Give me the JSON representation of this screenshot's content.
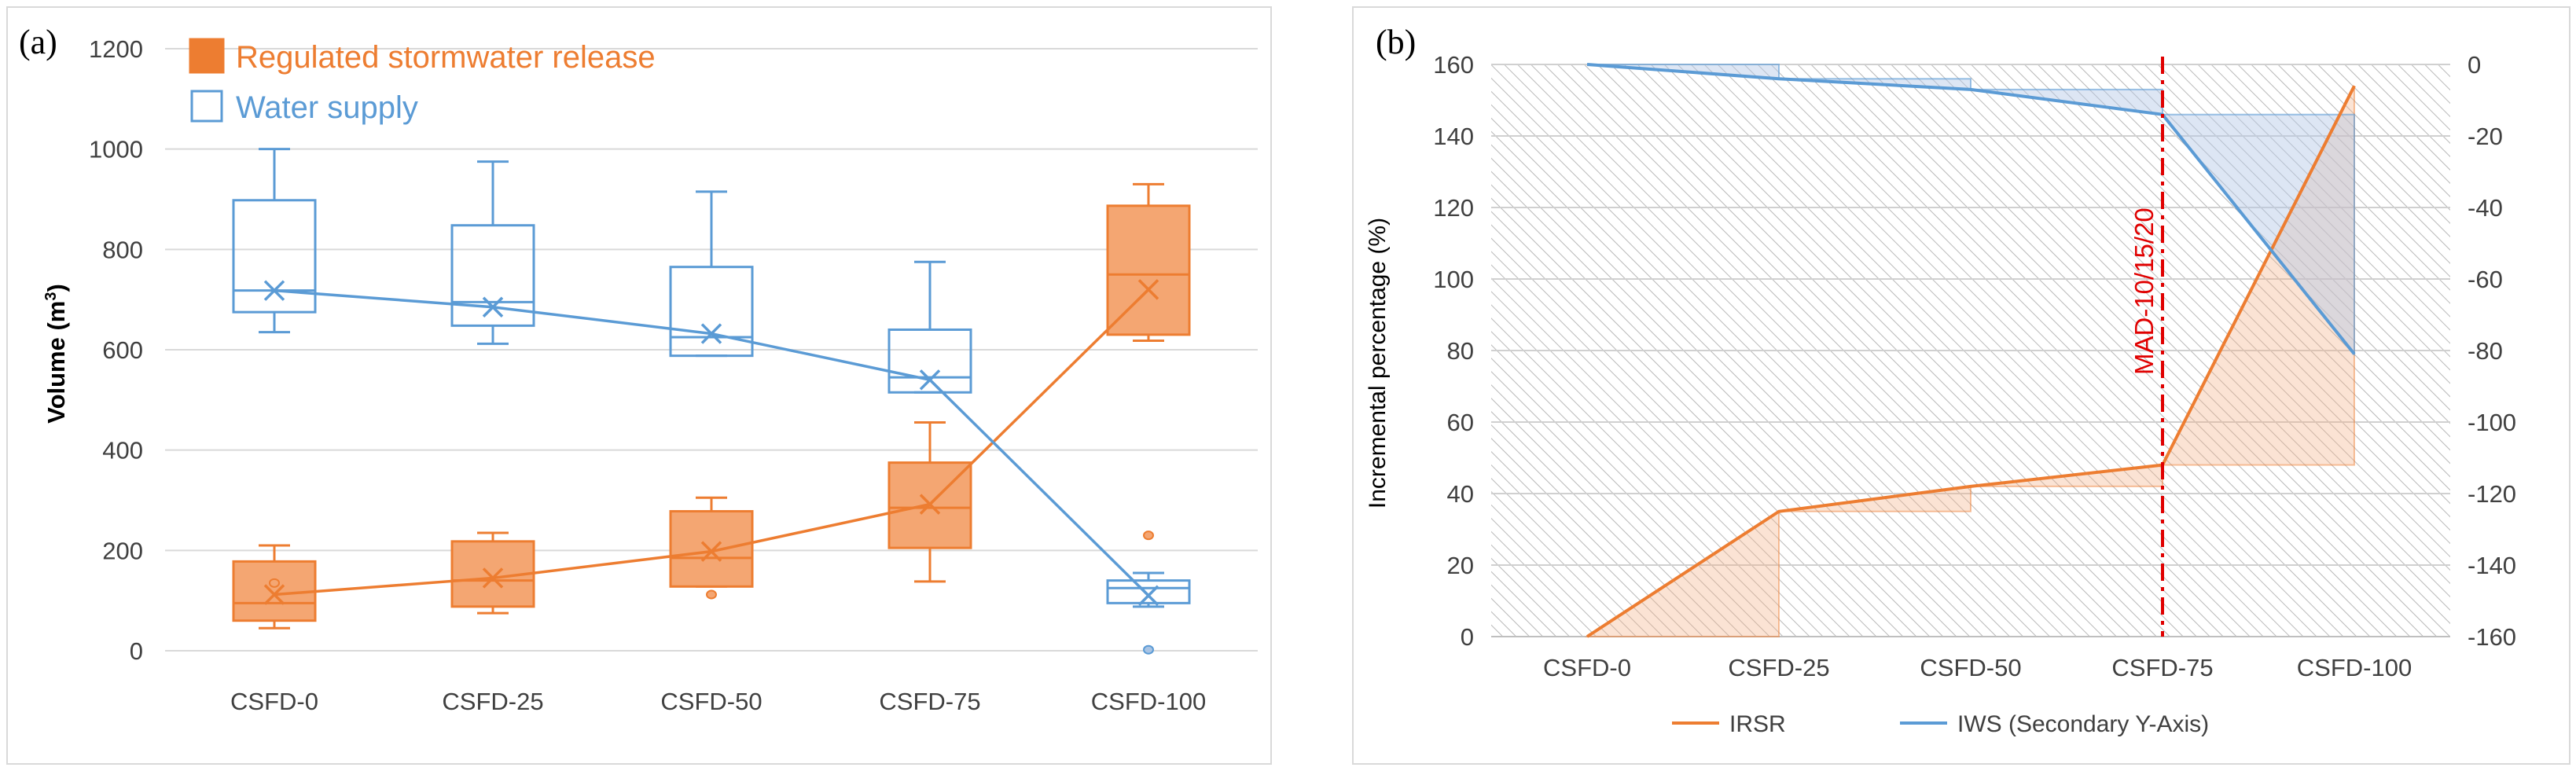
{
  "chart_data": [
    {
      "panel_label": "(a)",
      "type": "box",
      "categories": [
        "CSFD-0",
        "CSFD-25",
        "CSFD-50",
        "CSFD-75",
        "CSFD-100"
      ],
      "ylabel_main": "Volume (m",
      "ylabel_sup": "3",
      "ylabel_end": ")",
      "ylim": [
        0,
        1200
      ],
      "yticks": [
        "0",
        "200",
        "400",
        "600",
        "800",
        "1000",
        "1200"
      ],
      "grid": true,
      "legend_position": "top-left",
      "series": [
        {
          "name": "Regulated stormwater release",
          "color": "#ed7d31",
          "fill": "#f4a672",
          "boxes": [
            {
              "min": 45,
              "q1": 60,
              "median": 95,
              "q3": 178,
              "max": 210,
              "mean": 112,
              "outliers": [
                135
              ]
            },
            {
              "min": 75,
              "q1": 88,
              "median": 140,
              "q3": 218,
              "max": 235,
              "mean": 145,
              "outliers": []
            },
            {
              "min": 128,
              "q1": 128,
              "median": 185,
              "q3": 278,
              "max": 305,
              "mean": 198,
              "outliers": [
                112
              ]
            },
            {
              "min": 138,
              "q1": 205,
              "median": 285,
              "q3": 375,
              "max": 455,
              "mean": 292,
              "outliers": []
            },
            {
              "min": 618,
              "q1": 630,
              "median": 750,
              "q3": 887,
              "max": 930,
              "mean": 720,
              "outliers": [
                230
              ]
            }
          ]
        },
        {
          "name": "Water supply",
          "color": "#5b9bd5",
          "fill": "none",
          "boxes": [
            {
              "min": 635,
              "q1": 675,
              "median": 718,
              "q3": 898,
              "max": 1000,
              "mean": 718,
              "outliers": []
            },
            {
              "min": 612,
              "q1": 648,
              "median": 695,
              "q3": 848,
              "max": 975,
              "mean": 685,
              "outliers": []
            },
            {
              "min": 588,
              "q1": 588,
              "median": 625,
              "q3": 765,
              "max": 915,
              "mean": 632,
              "outliers": []
            },
            {
              "min": 515,
              "q1": 515,
              "median": 545,
              "q3": 640,
              "max": 775,
              "mean": 540,
              "outliers": []
            },
            {
              "min": 88,
              "q1": 95,
              "median": 125,
              "q3": 140,
              "max": 155,
              "mean": 110,
              "outliers": [
                2
              ]
            }
          ]
        }
      ]
    },
    {
      "panel_label": "(b)",
      "type": "line",
      "categories": [
        "CSFD-0",
        "CSFD-25",
        "CSFD-50",
        "CSFD-75",
        "CSFD-100"
      ],
      "ylabel": "Incremental percentage (%)",
      "ylim": [
        0,
        160
      ],
      "yticks": [
        "0",
        "20",
        "40",
        "60",
        "80",
        "100",
        "120",
        "140",
        "160"
      ],
      "y2lim": [
        -160,
        0
      ],
      "y2ticks": [
        "-160",
        "-140",
        "-120",
        "-100",
        "-80",
        "-60",
        "-40",
        "-20",
        "0"
      ],
      "grid": true,
      "legend_position": "bottom",
      "annotation": {
        "text": "MAD-10/15/20",
        "x_category": "CSFD-75",
        "color": "#e00000"
      },
      "series": [
        {
          "name": "IRSR",
          "axis": "primary",
          "color": "#ed7d31",
          "values": [
            0,
            35,
            42,
            48,
            154
          ]
        },
        {
          "name": "IWS (Secondary Y-Axis)",
          "axis": "secondary",
          "color": "#5b9bd5",
          "values": [
            0,
            -4,
            -7,
            -14,
            -81
          ]
        }
      ]
    }
  ]
}
